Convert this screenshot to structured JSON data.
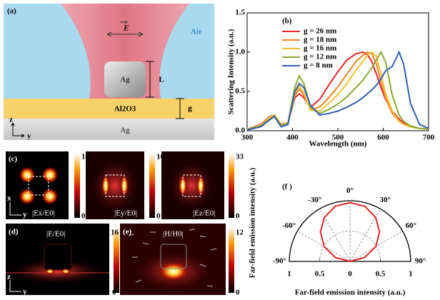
{
  "panel_a": {
    "label": "(a)",
    "field": "E",
    "medium": "Air",
    "particle": "Ag",
    "length": "L",
    "spacer": "Al2O3",
    "gap": "g",
    "substrate": "Ag",
    "axis_z": "z",
    "axis_y": "y"
  },
  "chart_data": [
    {
      "type": "line",
      "title": "(b)",
      "xlabel": "Wavelength (nm)",
      "ylabel": "Scattering Intensity (a.u.)",
      "x": [
        300,
        330,
        350,
        360,
        375,
        390,
        405,
        415,
        425,
        440,
        460,
        480,
        500,
        520,
        540,
        555,
        565,
        575,
        585,
        595,
        605,
        620,
        635,
        645,
        660,
        680,
        700
      ],
      "series": [
        {
          "name": "g = 26 nm",
          "color": "#e8262b",
          "values": [
            0.02,
            0.08,
            0.18,
            0.2,
            0.08,
            0.1,
            0.42,
            0.47,
            0.42,
            0.3,
            0.4,
            0.58,
            0.75,
            0.9,
            0.98,
            1.0,
            0.97,
            0.88,
            0.72,
            0.55,
            0.4,
            0.25,
            0.15,
            0.1,
            0.06,
            0.03,
            0.02
          ]
        },
        {
          "name": "g = 18 nm",
          "color": "#f58220",
          "values": [
            0.02,
            0.07,
            0.17,
            0.2,
            0.07,
            0.1,
            0.45,
            0.53,
            0.45,
            0.27,
            0.3,
            0.42,
            0.56,
            0.72,
            0.88,
            0.96,
            1.0,
            0.98,
            0.85,
            0.62,
            0.42,
            0.22,
            0.12,
            0.08,
            0.05,
            0.03,
            0.02
          ]
        },
        {
          "name": "g = 16 nm",
          "color": "#f2c230",
          "values": [
            0.02,
            0.07,
            0.17,
            0.2,
            0.07,
            0.1,
            0.48,
            0.57,
            0.48,
            0.26,
            0.25,
            0.35,
            0.46,
            0.6,
            0.77,
            0.88,
            0.96,
            1.0,
            0.95,
            0.72,
            0.48,
            0.25,
            0.12,
            0.08,
            0.05,
            0.03,
            0.02
          ]
        },
        {
          "name": "g = 12 nm",
          "color": "#8aab2c",
          "values": [
            0.02,
            0.06,
            0.15,
            0.19,
            0.06,
            0.1,
            0.55,
            0.7,
            0.6,
            0.3,
            0.22,
            0.27,
            0.34,
            0.43,
            0.55,
            0.64,
            0.72,
            0.8,
            0.9,
            1.0,
            0.88,
            0.45,
            0.2,
            0.12,
            0.06,
            0.03,
            0.02
          ]
        },
        {
          "name": "g = 8 nm",
          "color": "#2f5fb3",
          "values": [
            0.01,
            0.05,
            0.14,
            0.18,
            0.05,
            0.08,
            0.5,
            0.6,
            0.55,
            0.32,
            0.2,
            0.22,
            0.25,
            0.3,
            0.36,
            0.42,
            0.47,
            0.52,
            0.58,
            0.66,
            0.76,
            0.82,
            1.0,
            0.85,
            0.35,
            0.08,
            0.03
          ]
        }
      ],
      "xlim": [
        300,
        700
      ],
      "ylim": [
        0,
        1.5
      ],
      "xticks": [
        300,
        400,
        500,
        600,
        700
      ],
      "yticks": [
        {
          "value": 0,
          "label": "0.0"
        },
        0.5,
        {
          "value": 1,
          "label": "1.0"
        },
        1.5
      ]
    },
    {
      "type": "polar",
      "title": "(f )",
      "xlabel": "Far-field  emission intensity (a.u.)",
      "ylabel": "Far-field  emission intensity (a.u.)",
      "color": "#e8262b",
      "theta": [
        -90,
        -75,
        -60,
        -45,
        -30,
        -15,
        0,
        15,
        30,
        45,
        60,
        75,
        90
      ],
      "r": [
        0,
        0.25,
        0.49,
        0.69,
        0.84,
        0.94,
        0.97,
        0.94,
        0.84,
        0.69,
        0.49,
        0.25,
        0
      ],
      "rlim": [
        0,
        1
      ],
      "thetaticks": [
        {
          "value": -90,
          "label": "-90°"
        },
        {
          "value": -60,
          "label": "-60°"
        },
        {
          "value": -30,
          "label": "-30°"
        },
        {
          "value": 0,
          "label": "0°"
        },
        {
          "value": 30,
          "label": "30°"
        },
        {
          "value": 60,
          "label": "60°"
        },
        {
          "value": 90,
          "label": "90°"
        }
      ],
      "xticks": [
        {
          "value": -1,
          "label": "1"
        },
        {
          "value": -0.5,
          "label": "0.5"
        },
        0,
        0.5,
        1
      ]
    }
  ],
  "panel_c": {
    "label": "(c)",
    "axis_x": "x",
    "axis_y": "y",
    "maps": [
      {
        "name": "|Ex/E0|",
        "max": 10,
        "min": 0
      },
      {
        "name": "|Ey/E0|",
        "max": 16,
        "min": 0
      },
      {
        "name": "|Ez/E0|",
        "max": 33,
        "min": 0
      }
    ]
  },
  "panel_d": {
    "label": "(d)",
    "name": "|E/E0|",
    "max": 16,
    "min": 0,
    "axis_z": "z",
    "axis_y": "y"
  },
  "panel_e": {
    "label": "(e)",
    "name": "|H/H0|",
    "max": 12,
    "min": 0
  }
}
